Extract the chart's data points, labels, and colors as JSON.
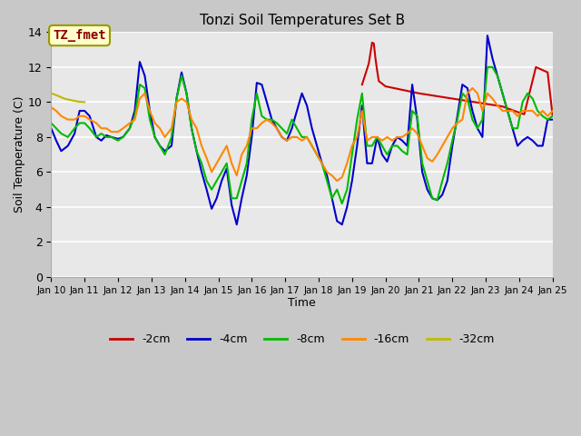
{
  "title": "Tonzi Soil Temperatures Set B",
  "xlabel": "Time",
  "ylabel": "Soil Temperature (C)",
  "annotation": "TZ_fmet",
  "ylim": [
    0,
    14
  ],
  "yticks": [
    0,
    2,
    4,
    6,
    8,
    10,
    12,
    14
  ],
  "xtick_labels": [
    "Jan 10",
    "Jan 11",
    "Jan 12",
    "Jan 13",
    "Jan 14",
    "Jan 15",
    "Jan 16",
    "Jan 17",
    "Jan 18",
    "Jan 19",
    "Jan 20",
    "Jan 21",
    "Jan 22",
    "Jan 23",
    "Jan 24",
    "Jan 25"
  ],
  "fig_bg": "#c8c8c8",
  "plot_bg": "#e8e8e8",
  "grid_color": "#ffffff",
  "series": {
    "neg2cm": {
      "color": "#cc0000",
      "label": "-2cm",
      "x": [
        19.3,
        19.5,
        19.6,
        19.65,
        19.7,
        19.75,
        19.8,
        20.0,
        20.5,
        21.0,
        21.5,
        22.0,
        22.5,
        23.0,
        23.5,
        23.85,
        24.0,
        24.15,
        24.5,
        24.85,
        25.0
      ],
      "y": [
        11.0,
        12.2,
        13.4,
        13.35,
        12.5,
        11.8,
        11.2,
        10.9,
        10.7,
        10.5,
        10.35,
        10.2,
        10.05,
        9.9,
        9.75,
        9.5,
        9.4,
        9.3,
        12.0,
        11.7,
        9.2
      ]
    },
    "neg4cm": {
      "color": "#0000cc",
      "label": "-4cm",
      "x": [
        10.0,
        10.15,
        10.3,
        10.5,
        10.7,
        10.85,
        11.0,
        11.15,
        11.35,
        11.5,
        11.65,
        11.8,
        12.0,
        12.15,
        12.35,
        12.5,
        12.65,
        12.8,
        12.95,
        13.1,
        13.25,
        13.4,
        13.6,
        13.75,
        13.9,
        14.05,
        14.2,
        14.35,
        14.5,
        14.65,
        14.8,
        14.95,
        15.1,
        15.25,
        15.4,
        15.55,
        15.7,
        15.85,
        16.0,
        16.15,
        16.3,
        16.45,
        16.6,
        16.75,
        16.9,
        17.05,
        17.2,
        17.35,
        17.5,
        17.65,
        17.8,
        17.95,
        18.1,
        18.25,
        18.4,
        18.55,
        18.7,
        18.85,
        19.0,
        19.15,
        19.3,
        19.45,
        19.6,
        19.75,
        19.9,
        20.05,
        20.2,
        20.35,
        20.5,
        20.65,
        20.8,
        20.95,
        21.1,
        21.25,
        21.4,
        21.55,
        21.7,
        21.85,
        22.0,
        22.15,
        22.3,
        22.45,
        22.6,
        22.75,
        22.9,
        23.05,
        23.2,
        23.35,
        23.5,
        23.65,
        23.8,
        23.95,
        24.1,
        24.25,
        24.4,
        24.55,
        24.7,
        24.85,
        25.0
      ],
      "y": [
        8.5,
        7.8,
        7.2,
        7.5,
        8.2,
        9.5,
        9.5,
        9.2,
        8.0,
        7.8,
        8.1,
        8.0,
        7.9,
        8.0,
        8.5,
        9.5,
        12.3,
        11.5,
        9.5,
        8.0,
        7.5,
        7.2,
        7.5,
        10.2,
        11.7,
        10.5,
        8.5,
        7.2,
        6.0,
        5.0,
        3.9,
        4.5,
        5.5,
        6.2,
        4.1,
        3.0,
        4.5,
        5.8,
        8.0,
        11.1,
        11.0,
        10.0,
        9.0,
        8.5,
        8.0,
        7.8,
        8.5,
        9.5,
        10.5,
        9.8,
        8.5,
        7.5,
        6.5,
        5.8,
        4.5,
        3.2,
        3.0,
        4.0,
        5.5,
        7.5,
        9.8,
        6.5,
        6.5,
        8.0,
        7.0,
        6.6,
        7.5,
        8.0,
        7.8,
        7.5,
        11.0,
        9.0,
        6.0,
        5.0,
        4.5,
        4.4,
        4.7,
        5.5,
        7.5,
        9.2,
        11.0,
        10.8,
        9.5,
        8.5,
        8.0,
        13.8,
        12.5,
        11.5,
        10.5,
        9.5,
        8.5,
        7.5,
        7.8,
        8.0,
        7.8,
        7.5,
        7.5,
        9.0,
        9.0
      ]
    },
    "neg8cm": {
      "color": "#00bb00",
      "label": "-8cm",
      "x": [
        10.0,
        10.15,
        10.3,
        10.5,
        10.7,
        10.85,
        11.0,
        11.15,
        11.35,
        11.5,
        11.65,
        11.8,
        12.0,
        12.15,
        12.35,
        12.5,
        12.65,
        12.8,
        12.95,
        13.1,
        13.25,
        13.4,
        13.6,
        13.75,
        13.9,
        14.05,
        14.2,
        14.35,
        14.5,
        14.65,
        14.8,
        14.95,
        15.1,
        15.25,
        15.4,
        15.55,
        15.7,
        15.85,
        16.0,
        16.15,
        16.3,
        16.45,
        16.6,
        16.75,
        16.9,
        17.05,
        17.2,
        17.35,
        17.5,
        17.65,
        17.8,
        17.95,
        18.1,
        18.25,
        18.4,
        18.55,
        18.7,
        18.85,
        19.0,
        19.15,
        19.3,
        19.45,
        19.6,
        19.75,
        19.9,
        20.05,
        20.2,
        20.35,
        20.5,
        20.65,
        20.8,
        20.95,
        21.1,
        21.25,
        21.4,
        21.55,
        21.7,
        21.85,
        22.0,
        22.15,
        22.3,
        22.45,
        22.6,
        22.75,
        22.9,
        23.05,
        23.2,
        23.35,
        23.5,
        23.65,
        23.8,
        23.95,
        24.1,
        24.25,
        24.4,
        24.55,
        24.7,
        24.85,
        25.0
      ],
      "y": [
        8.8,
        8.5,
        8.2,
        8.0,
        8.5,
        8.8,
        8.8,
        8.5,
        8.0,
        8.2,
        8.0,
        8.0,
        7.8,
        8.0,
        8.5,
        9.2,
        11.0,
        10.8,
        9.0,
        8.0,
        7.5,
        7.0,
        8.0,
        10.2,
        11.5,
        10.5,
        8.5,
        7.2,
        6.5,
        5.5,
        5.0,
        5.5,
        6.0,
        6.5,
        4.5,
        4.5,
        5.5,
        6.5,
        9.0,
        10.5,
        9.2,
        9.0,
        9.0,
        8.8,
        8.5,
        8.2,
        9.0,
        8.5,
        8.0,
        8.0,
        7.5,
        7.0,
        6.5,
        5.5,
        4.5,
        5.0,
        4.2,
        5.0,
        7.0,
        9.0,
        10.5,
        7.5,
        7.5,
        8.0,
        7.5,
        7.0,
        7.5,
        7.5,
        7.2,
        7.0,
        9.5,
        9.2,
        6.5,
        5.5,
        4.5,
        4.4,
        5.5,
        6.5,
        7.8,
        9.0,
        10.5,
        10.2,
        9.0,
        8.5,
        9.0,
        12.0,
        12.0,
        11.5,
        10.5,
        9.5,
        8.5,
        8.5,
        10.0,
        10.5,
        10.2,
        9.5,
        9.2,
        9.0,
        9.2
      ]
    },
    "neg16cm": {
      "color": "#ff8800",
      "label": "-16cm",
      "x": [
        10.0,
        10.15,
        10.3,
        10.5,
        10.7,
        10.85,
        11.0,
        11.15,
        11.35,
        11.5,
        11.65,
        11.8,
        12.0,
        12.15,
        12.35,
        12.5,
        12.65,
        12.8,
        12.95,
        13.1,
        13.25,
        13.4,
        13.6,
        13.75,
        13.9,
        14.05,
        14.2,
        14.35,
        14.5,
        14.65,
        14.8,
        14.95,
        15.1,
        15.25,
        15.4,
        15.55,
        15.7,
        15.85,
        16.0,
        16.15,
        16.3,
        16.45,
        16.6,
        16.75,
        16.9,
        17.05,
        17.2,
        17.35,
        17.5,
        17.65,
        17.8,
        17.95,
        18.1,
        18.25,
        18.4,
        18.55,
        18.7,
        18.85,
        19.0,
        19.15,
        19.3,
        19.45,
        19.6,
        19.75,
        19.9,
        20.05,
        20.2,
        20.35,
        20.5,
        20.65,
        20.8,
        20.95,
        21.1,
        21.25,
        21.4,
        21.55,
        21.7,
        21.85,
        22.0,
        22.15,
        22.3,
        22.45,
        22.6,
        22.75,
        22.9,
        23.05,
        23.2,
        23.35,
        23.5,
        23.65,
        23.8,
        23.95,
        24.1,
        24.25,
        24.4,
        24.55,
        24.7,
        24.85,
        25.0
      ],
      "y": [
        9.7,
        9.5,
        9.2,
        9.0,
        9.0,
        9.2,
        9.2,
        9.0,
        8.8,
        8.5,
        8.5,
        8.3,
        8.3,
        8.5,
        8.8,
        9.0,
        10.2,
        10.5,
        9.5,
        8.8,
        8.5,
        8.0,
        8.5,
        10.0,
        10.2,
        10.0,
        9.0,
        8.5,
        7.5,
        6.8,
        6.0,
        6.5,
        7.0,
        7.5,
        6.5,
        5.8,
        7.0,
        7.5,
        8.5,
        8.5,
        8.8,
        9.0,
        8.8,
        8.5,
        8.0,
        7.8,
        8.0,
        8.0,
        7.8,
        8.0,
        7.5,
        7.0,
        6.5,
        6.0,
        5.8,
        5.5,
        5.7,
        6.5,
        7.5,
        8.0,
        9.5,
        7.8,
        8.0,
        8.0,
        7.8,
        8.0,
        7.8,
        8.0,
        8.0,
        8.2,
        8.5,
        8.2,
        7.5,
        6.8,
        6.6,
        7.0,
        7.5,
        8.0,
        8.5,
        8.8,
        9.0,
        10.5,
        10.8,
        10.5,
        9.5,
        10.5,
        10.2,
        9.8,
        9.5,
        9.5,
        9.5,
        9.2,
        9.5,
        9.5,
        9.5,
        9.2,
        9.5,
        9.2,
        9.5
      ]
    },
    "neg32cm": {
      "color": "#bbbb00",
      "label": "-32cm",
      "x": [
        10.0,
        10.08,
        10.17,
        10.25,
        10.33,
        10.42,
        10.5,
        10.58,
        10.67,
        10.75,
        10.83,
        10.92,
        11.0
      ],
      "y": [
        10.5,
        10.45,
        10.38,
        10.32,
        10.25,
        10.18,
        10.15,
        10.12,
        10.08,
        10.05,
        10.02,
        10.01,
        10.0
      ]
    }
  }
}
